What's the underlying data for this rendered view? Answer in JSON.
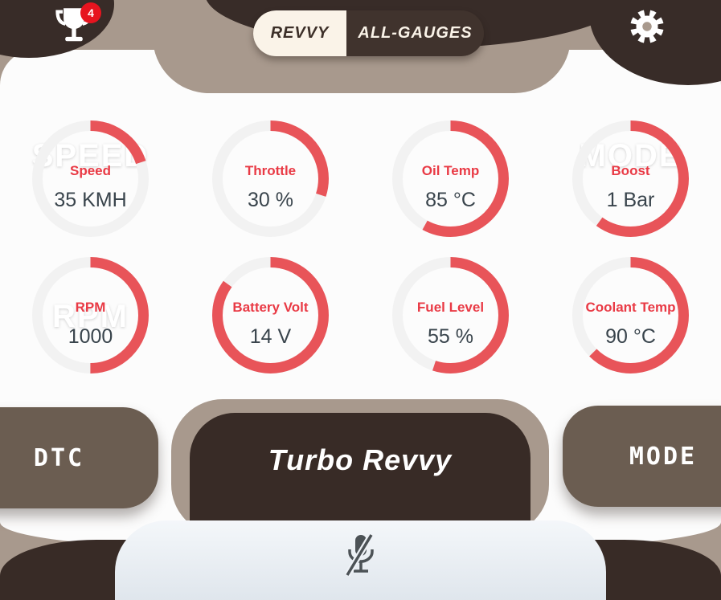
{
  "header": {
    "trophy_badge": "4",
    "tabs": [
      {
        "label": "REVVY",
        "active": true
      },
      {
        "label": "ALL-GAUGES",
        "active": false
      }
    ]
  },
  "gauges": [
    {
      "label": "Speed",
      "value": "35 KMH",
      "fraction": 0.2,
      "watermark": "SPEED",
      "watermark_pos": "top"
    },
    {
      "label": "Throttle",
      "value": "30 %",
      "fraction": 0.3,
      "watermark": "",
      "watermark_pos": ""
    },
    {
      "label": "Oil Temp",
      "value": "85 °C",
      "fraction": 0.58,
      "watermark": "",
      "watermark_pos": ""
    },
    {
      "label": "Boost",
      "value": "1 Bar",
      "fraction": 0.6,
      "watermark": "MODE",
      "watermark_pos": "top"
    },
    {
      "label": "RPM",
      "value": "1000",
      "fraction": 0.5,
      "watermark": "RPM",
      "watermark_pos": "center"
    },
    {
      "label": "Battery Volt",
      "value": "14 V",
      "fraction": 0.85,
      "watermark": "",
      "watermark_pos": ""
    },
    {
      "label": "Fuel Level",
      "value": "55 %",
      "fraction": 0.55,
      "watermark": "",
      "watermark_pos": ""
    },
    {
      "label": "Coolant Temp",
      "value": "90 °C",
      "fraction": 0.625,
      "watermark": "",
      "watermark_pos": ""
    }
  ],
  "footer": {
    "dtc_label": "DTC",
    "mode_label": "MODE",
    "title": "Turbo Revvy"
  },
  "icons": {
    "trophy": "trophy-icon",
    "gear": "gear-icon",
    "mic": "mic-off-icon"
  },
  "colors": {
    "accent_red": "#e93a45",
    "arc_red": "#e85459",
    "arc_track": "#f2f2f2",
    "taupe": "#a8998d",
    "dark_brown": "#382c28",
    "button_brown": "#6b5d51",
    "cream": "#faf3e8",
    "value_text": "#39444c",
    "badge_red": "#e7141f"
  }
}
